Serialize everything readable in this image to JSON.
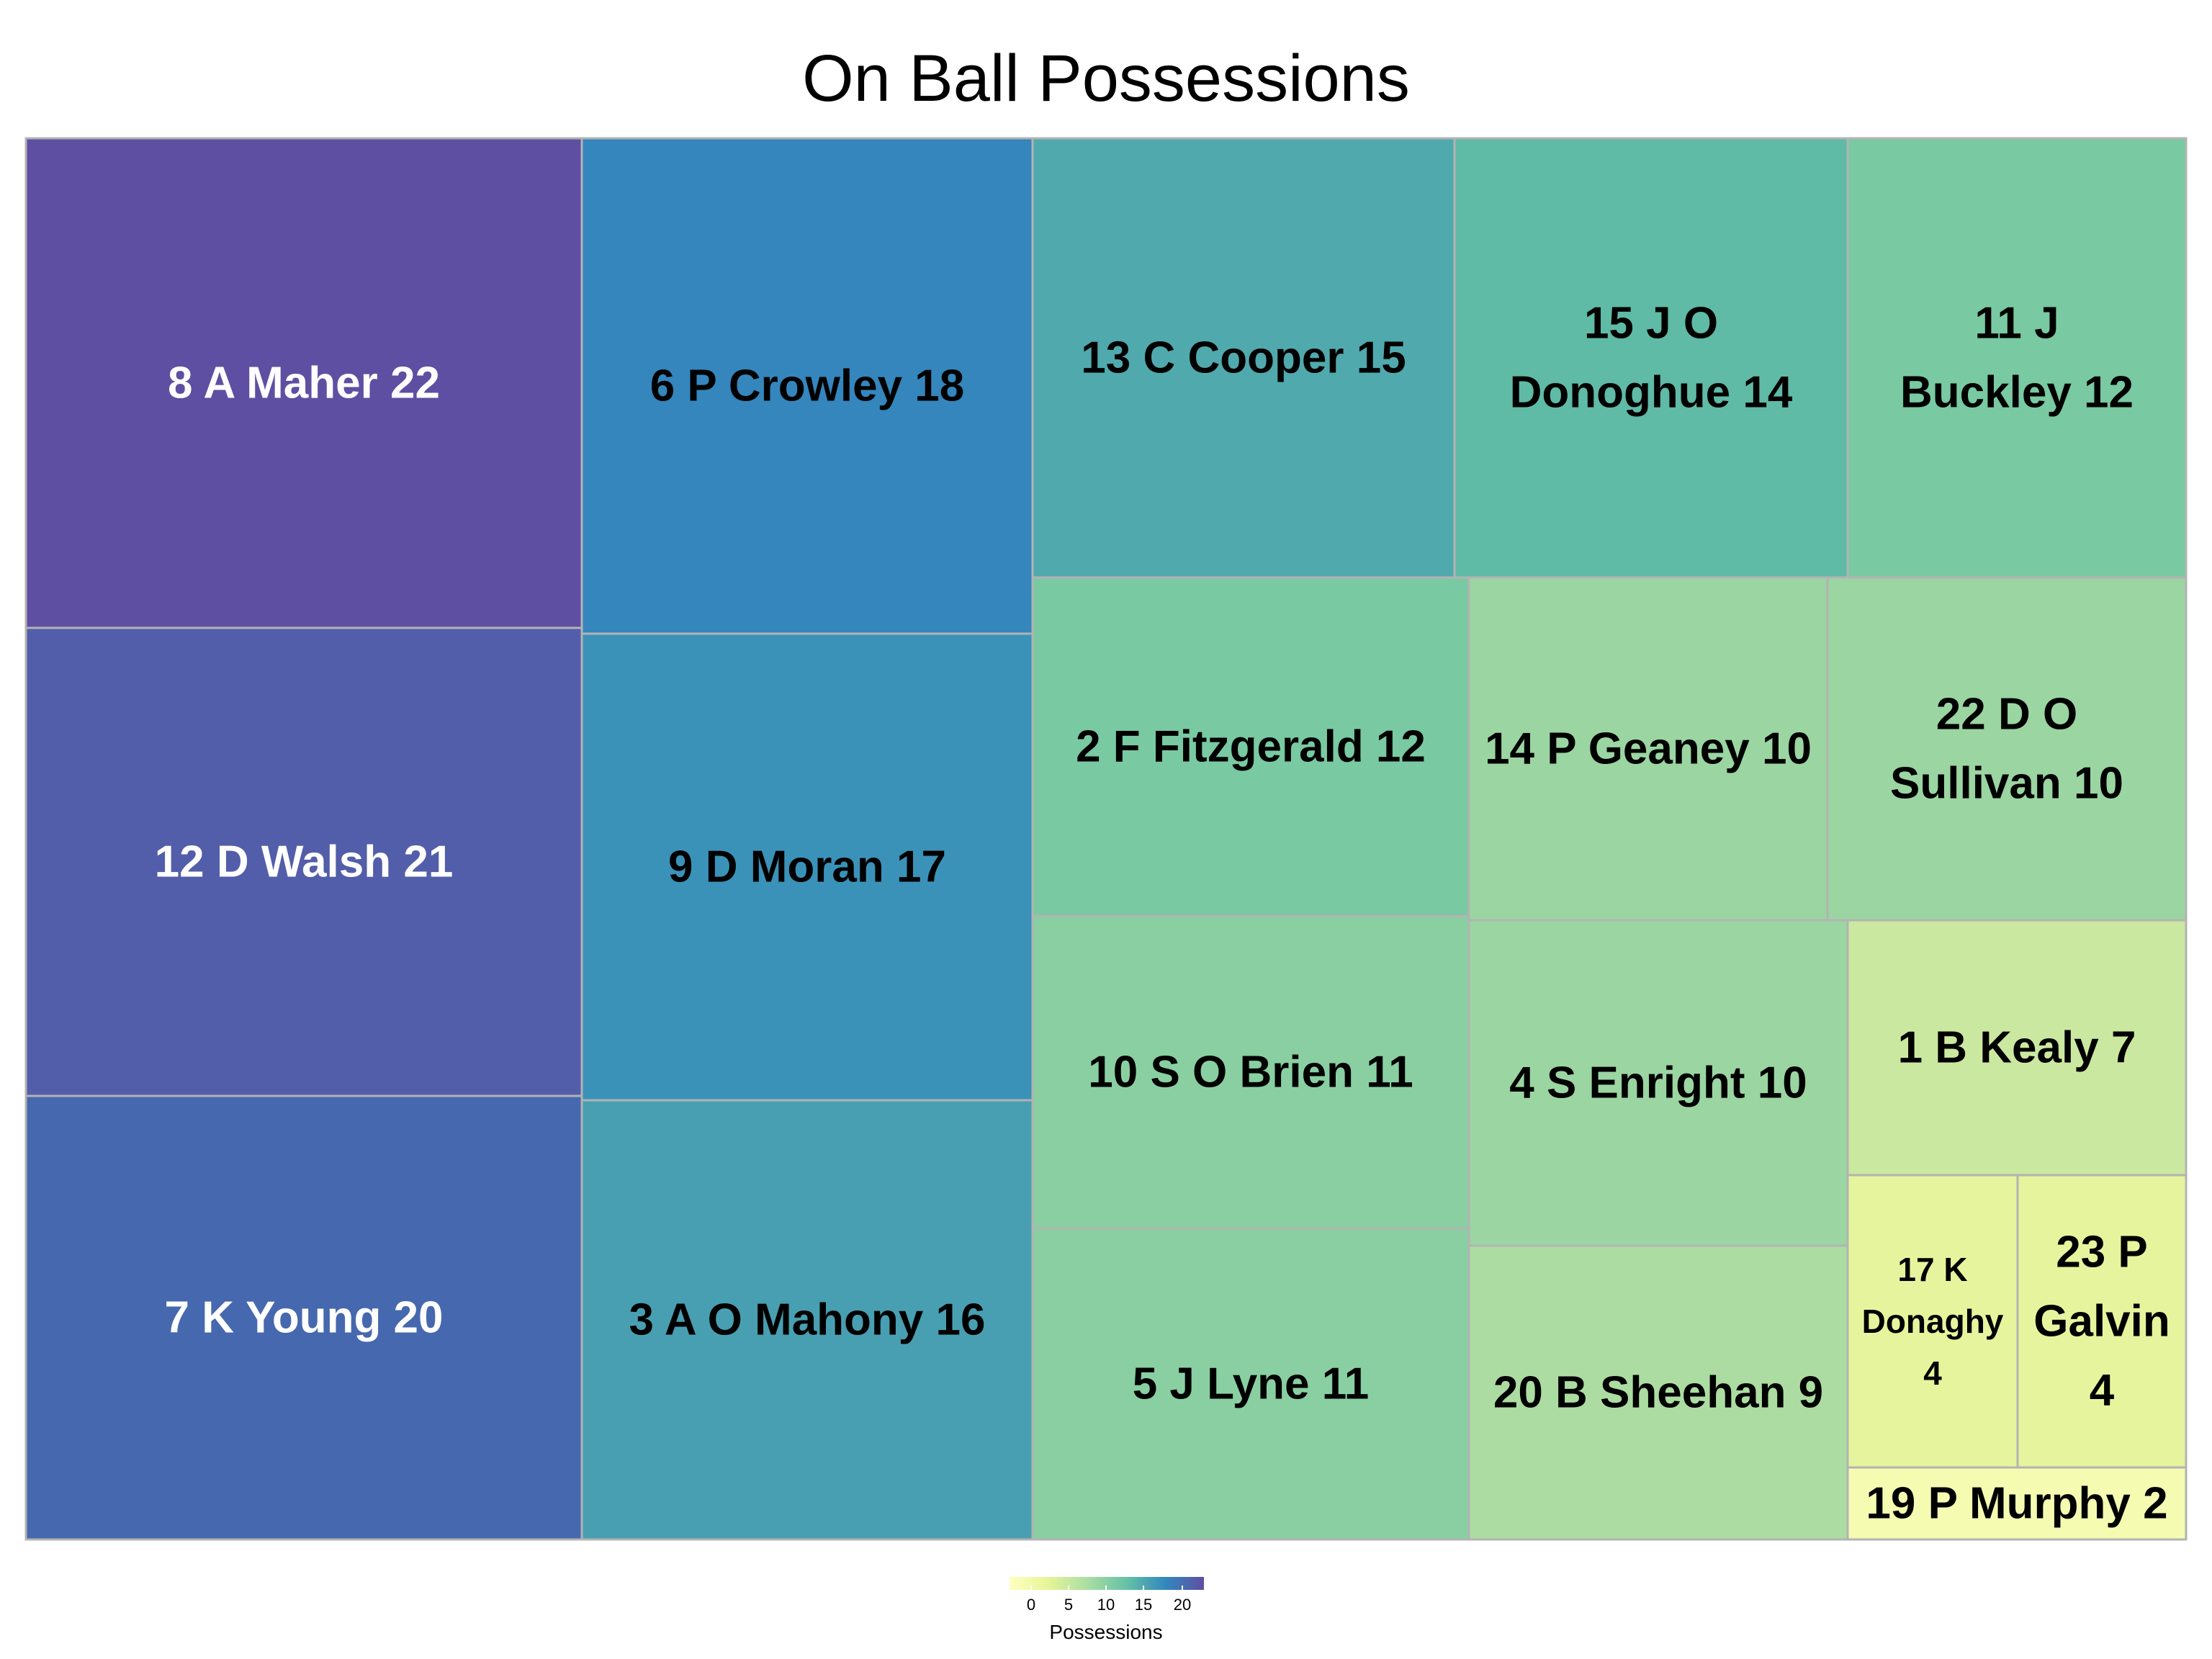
{
  "chart_data": {
    "type": "treemap",
    "title": "On Ball Possessions",
    "items": [
      {
        "label": "8 A Maher 22",
        "lines": [
          "8 A Maher 22"
        ],
        "value": 22,
        "color": "#5e4fa2"
      },
      {
        "label": "12 D Walsh 21",
        "lines": [
          "12 D Walsh 21"
        ],
        "value": 21,
        "color": "#525ea9"
      },
      {
        "label": "7 K Young 20",
        "lines": [
          "7 K Young 20"
        ],
        "value": 20,
        "color": "#4668ae"
      },
      {
        "label": "6 P Crowley 18",
        "lines": [
          "6 P Crowley 18"
        ],
        "value": 18,
        "color": "#3486bd"
      },
      {
        "label": "9 D Moran 17",
        "lines": [
          "9 D Moran 17"
        ],
        "value": 17,
        "color": "#3b92b9"
      },
      {
        "label": "3 A O Mahony 16",
        "lines": [
          "3 A O Mahony 16"
        ],
        "value": 16,
        "color": "#489fb2"
      },
      {
        "label": "13 C Cooper 15",
        "lines": [
          "13 C Cooper 15"
        ],
        "value": 15,
        "color": "#50a9ad"
      },
      {
        "label": "15 J O Donoghue 14",
        "lines": [
          "15 J O",
          "Donoghue 14"
        ],
        "value": 14,
        "color": "#5fbaa6"
      },
      {
        "label": "11 J Buckley 12",
        "lines": [
          "11 J",
          "Buckley 12"
        ],
        "value": 12,
        "color": "#79c9a2"
      },
      {
        "label": "2 F Fitzgerald 12",
        "lines": [
          "2 F Fitzgerald 12"
        ],
        "value": 12,
        "color": "#79c9a2"
      },
      {
        "label": "10 S O Brien 11",
        "lines": [
          "10 S O Brien 11"
        ],
        "value": 11,
        "color": "#89cfa2"
      },
      {
        "label": "5 J Lyne 11",
        "lines": [
          "5 J Lyne 11"
        ],
        "value": 11,
        "color": "#89cfa2"
      },
      {
        "label": "14 P Geaney 10",
        "lines": [
          "14 P Geaney 10"
        ],
        "value": 10,
        "color": "#9bd5a2"
      },
      {
        "label": "22 D O Sullivan 10",
        "lines": [
          "22 D O",
          "Sullivan 10"
        ],
        "value": 10,
        "color": "#9bd5a2"
      },
      {
        "label": "4 S Enright 10",
        "lines": [
          "4 S Enright 10"
        ],
        "value": 10,
        "color": "#9bd5a2"
      },
      {
        "label": "20 B Sheehan 9",
        "lines": [
          "20 B Sheehan 9"
        ],
        "value": 9,
        "color": "#acdca1"
      },
      {
        "label": "1 B Kealy 7",
        "lines": [
          "1 B Kealy 7"
        ],
        "value": 7,
        "color": "#cbe8a0"
      },
      {
        "label": "17 K Donaghy 4",
        "lines": [
          "17 K",
          "Donaghy",
          "4"
        ],
        "value": 4,
        "color": "#e6f59d"
      },
      {
        "label": "23 P Galvin 4",
        "lines": [
          "23 P",
          "Galvin",
          "4"
        ],
        "value": 4,
        "color": "#e6f59d"
      },
      {
        "label": "19 P Murphy 2",
        "lines": [
          "19 P Murphy 2"
        ],
        "value": 2,
        "color": "#f6fbb2"
      }
    ],
    "colorbar": {
      "title": "Possessions",
      "ticks": [
        "0",
        "5",
        "10",
        "15",
        "20"
      ],
      "colors": [
        "#ffffbf",
        "#e6f598",
        "#abdda4",
        "#66c2a5",
        "#3288bd",
        "#5e4fa2"
      ]
    }
  }
}
